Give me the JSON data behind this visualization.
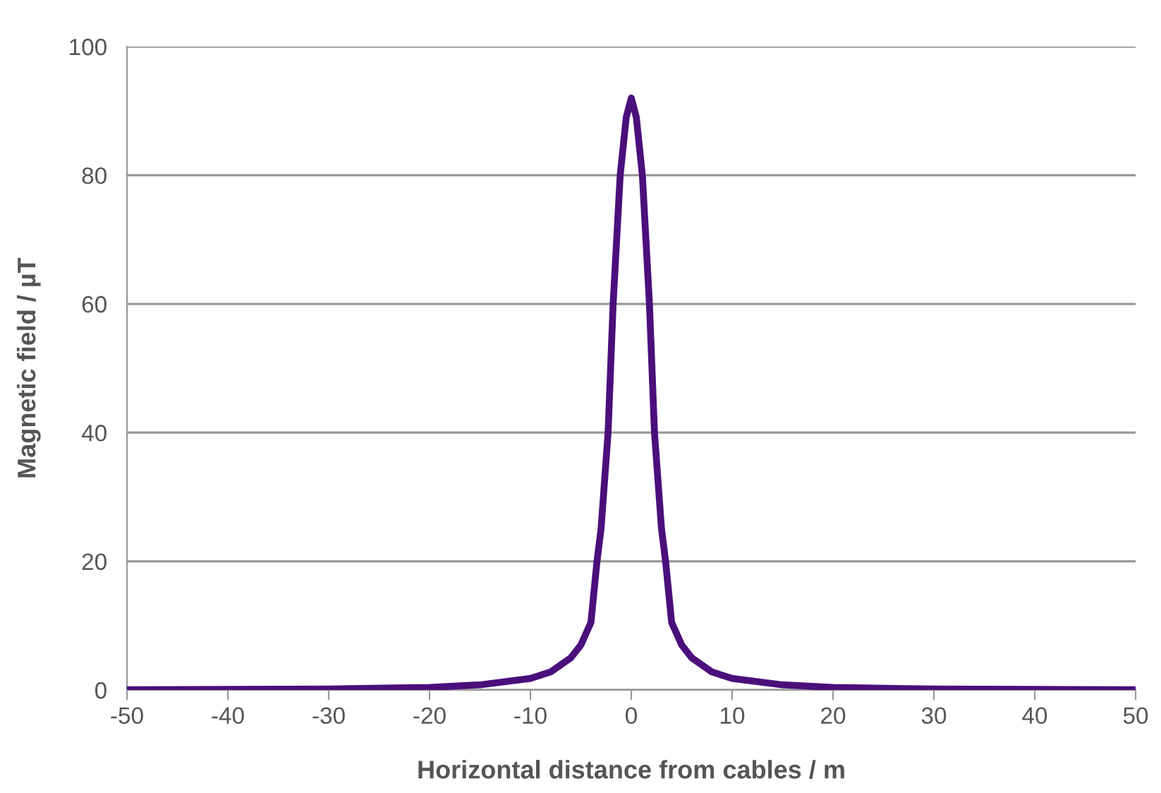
{
  "chart_data": {
    "type": "line",
    "xlabel": "Horizontal distance from cables / m",
    "ylabel": "Magnetic field / µT",
    "x": [
      -50,
      -40,
      -30,
      -20,
      -15,
      -10,
      -8,
      -6,
      -5,
      -4,
      -3.4,
      -3,
      -2.3,
      -1.8,
      -1.1,
      -0.5,
      0,
      0.5,
      1.1,
      1.8,
      2.3,
      3,
      3.4,
      4,
      5,
      6,
      8,
      10,
      15,
      20,
      30,
      40,
      50
    ],
    "series": [
      {
        "color": "#4b0f7c",
        "values": [
          0.05,
          0.1,
          0.15,
          0.4,
          0.8,
          1.8,
          2.8,
          5,
          7,
          10.5,
          20,
          25,
          40,
          60,
          80,
          89,
          92,
          89,
          80,
          60,
          40,
          25,
          20,
          10.5,
          7,
          5,
          2.8,
          1.8,
          0.8,
          0.4,
          0.15,
          0.1,
          0.05
        ]
      }
    ],
    "xlim": [
      -50,
      50
    ],
    "ylim": [
      0,
      100
    ],
    "xticks": [
      -50,
      -40,
      -30,
      -20,
      -10,
      0,
      10,
      20,
      30,
      40,
      50
    ],
    "yticks": [
      0,
      20,
      40,
      60,
      80,
      100
    ],
    "grid": "y",
    "legend": false,
    "marker": "none",
    "line_style": "solid"
  }
}
